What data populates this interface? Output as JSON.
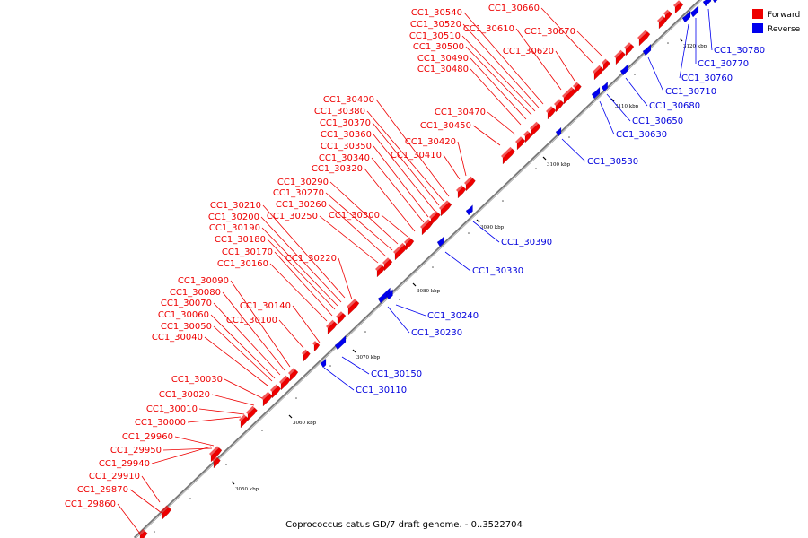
{
  "caption": "Coprococcus catus GD/7 draft genome. - 0..3522704",
  "legend": [
    {
      "label": "Forward",
      "color": "#ee0000"
    },
    {
      "label": "Reverse",
      "color": "#0000ee"
    }
  ],
  "colors": {
    "forward": "#ee0000",
    "reverse": "#0000ee",
    "backbone": "#888888"
  },
  "ticks": [
    "3050 kbp",
    "3060 kbp",
    "3070 kbp",
    "3080 kbp",
    "3090 kbp",
    "3100 kbp",
    "3110 kbp",
    "3120 kbp"
  ],
  "forward_genes": [
    "CC1_29860",
    "CC1_29870",
    "CC1_29910",
    "CC1_29940",
    "CC1_29950",
    "CC1_29960",
    "CC1_30000",
    "CC1_30010",
    "CC1_30020",
    "CC1_30030",
    "CC1_30040",
    "CC1_30050",
    "CC1_30060",
    "CC1_30070",
    "CC1_30080",
    "CC1_30090",
    "CC1_30100",
    "CC1_30140",
    "CC1_30160",
    "CC1_30170",
    "CC1_30180",
    "CC1_30190",
    "CC1_30200",
    "CC1_30210",
    "CC1_30220",
    "CC1_30250",
    "CC1_30260",
    "CC1_30270",
    "CC1_30290",
    "CC1_30300",
    "CC1_30320",
    "CC1_30340",
    "CC1_30350",
    "CC1_30360",
    "CC1_30370",
    "CC1_30380",
    "CC1_30400",
    "CC1_30410",
    "CC1_30420",
    "CC1_30450",
    "CC1_30470",
    "CC1_30480",
    "CC1_30490",
    "CC1_30500",
    "CC1_30510",
    "CC1_30520",
    "CC1_30540",
    "CC1_30610",
    "CC1_30620",
    "CC1_30660",
    "CC1_30670"
  ],
  "reverse_genes": [
    "CC1_30110",
    "CC1_30150",
    "CC1_30230",
    "CC1_30240",
    "CC1_30330",
    "CC1_30390",
    "CC1_30530",
    "CC1_30630",
    "CC1_30650",
    "CC1_30680",
    "CC1_30710",
    "CC1_30760",
    "CC1_30770",
    "CC1_30780"
  ]
}
